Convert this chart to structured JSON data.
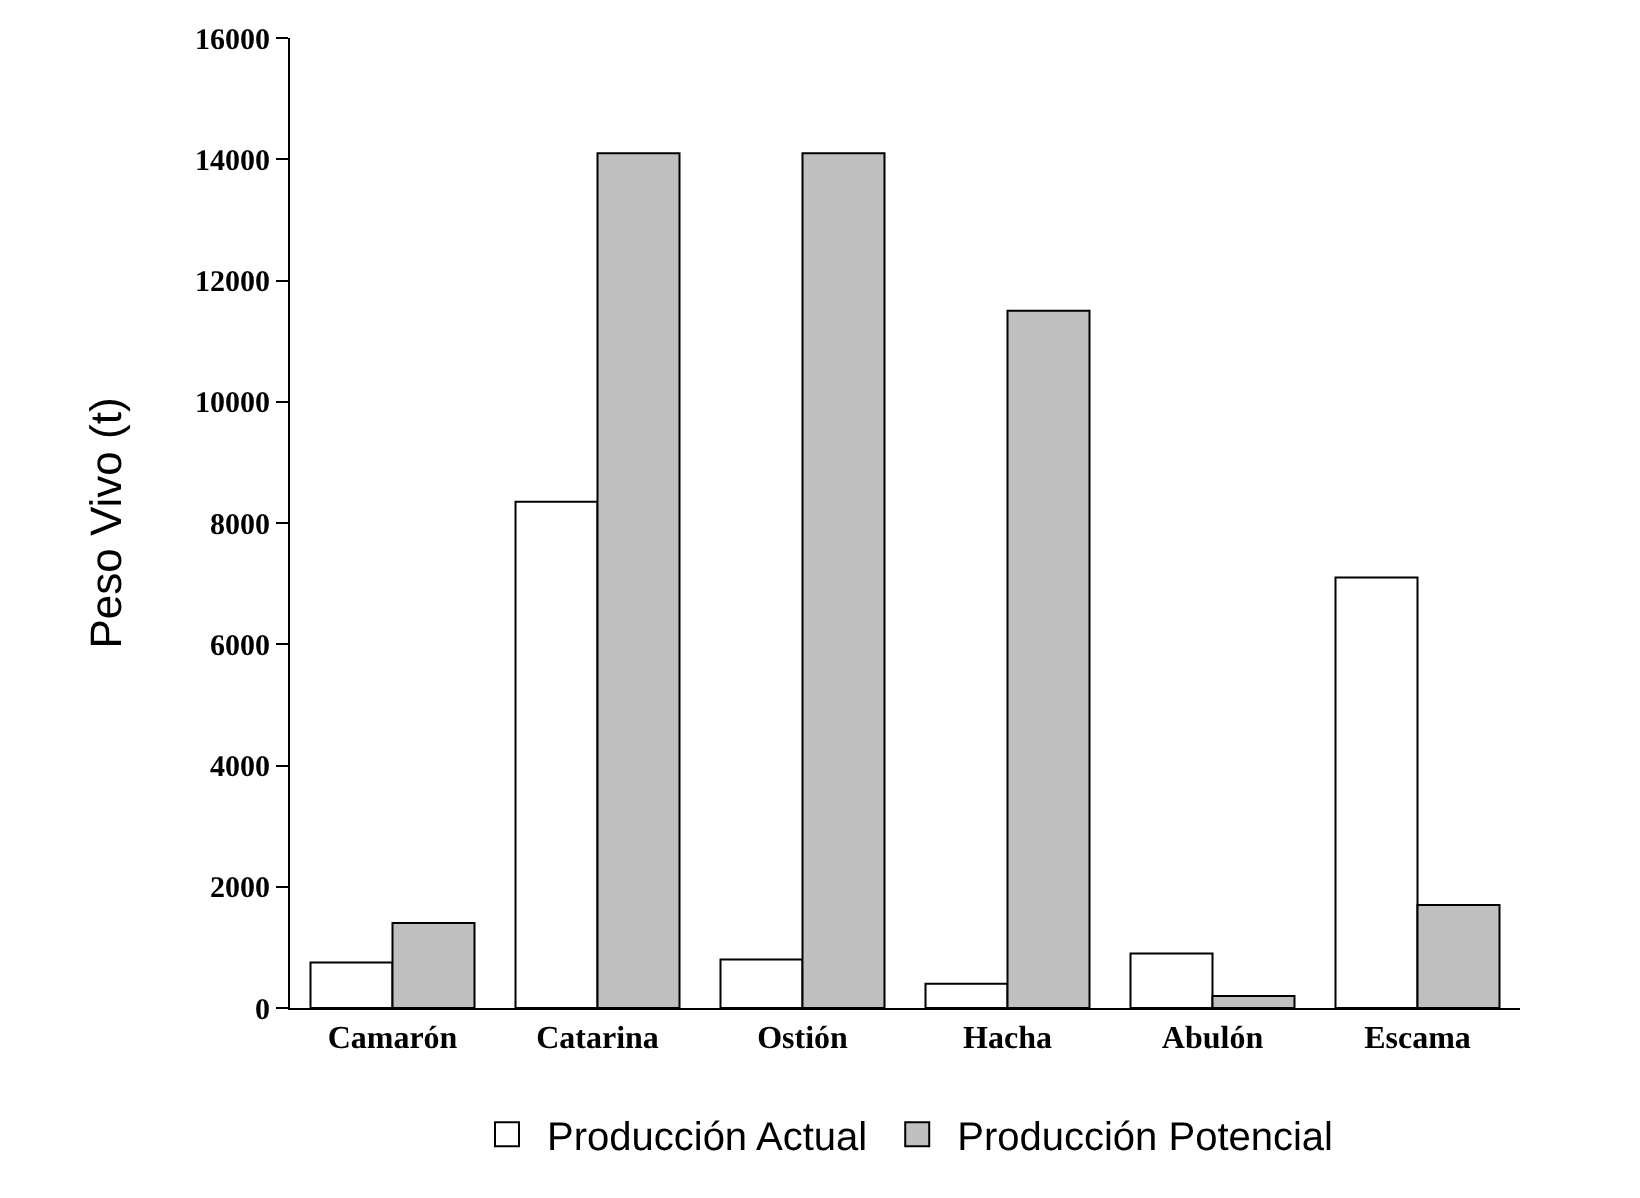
{
  "chart_data": {
    "type": "bar",
    "ylabel": "Peso Vivo (t)",
    "categories": [
      "Camarón",
      "Catarina",
      "Ostión",
      "Hacha",
      "Abulón",
      "Escama"
    ],
    "series": [
      {
        "name": "Producción Actual",
        "color": "#ffffff",
        "values": [
          750,
          8350,
          800,
          400,
          900,
          7100
        ]
      },
      {
        "name": "Producción Potencial",
        "color": "#c0c0c0",
        "values": [
          1400,
          14100,
          14100,
          11500,
          200,
          1700
        ]
      }
    ],
    "ylim": [
      0,
      16000
    ],
    "yticks": [
      0,
      2000,
      4000,
      6000,
      8000,
      10000,
      12000,
      14000,
      16000
    ],
    "legend": "bottom"
  }
}
